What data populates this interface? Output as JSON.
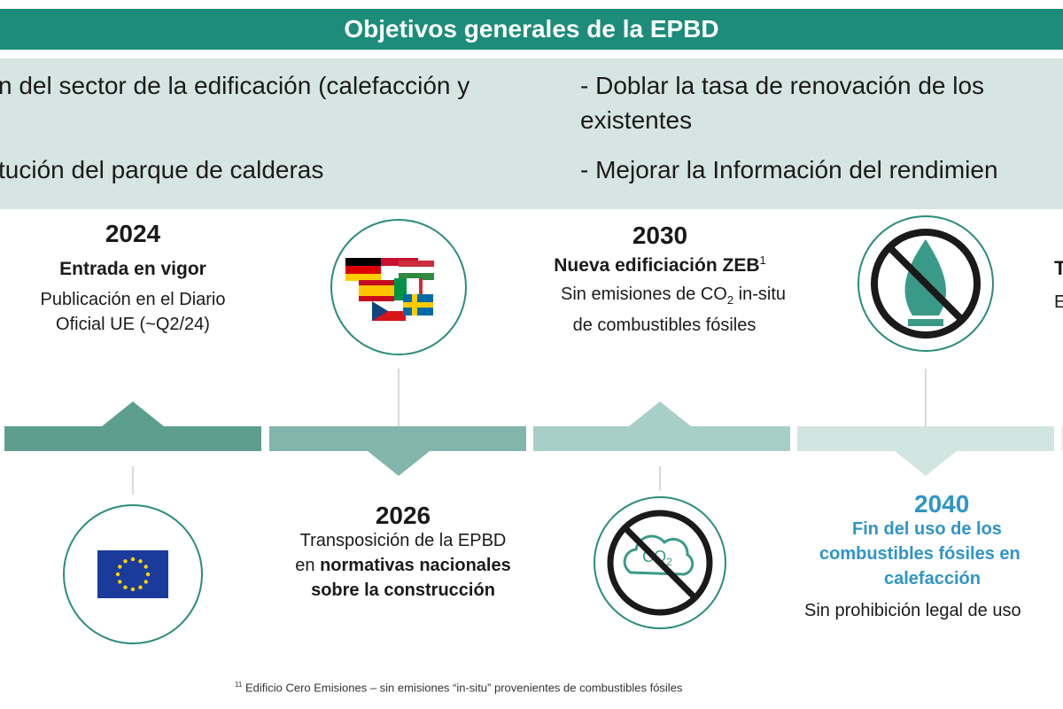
{
  "header": {
    "title": "Objetivos generales de la EPBD"
  },
  "objectives": {
    "left": [
      "n del sector de la edificación (calefacción y",
      "tución del parque de calderas"
    ],
    "right": [
      "- Doblar la tasa de renovación de los",
      "existentes",
      "- Mejorar la Información del rendimien"
    ]
  },
  "milestones": [
    {
      "year": "2024",
      "title": "Entrada en vigor",
      "lines": [
        "Publicación en el Diario",
        "Oficial UE (~Q2/24)"
      ]
    },
    {
      "year": "2026",
      "lines": [
        "Transposición de la EPBD"
      ],
      "prefix": "en",
      "bold": [
        "normativas nacionales",
        "sobre la construcción"
      ]
    },
    {
      "year": "2030",
      "title": "Nueva edificiación ZEB",
      "title_sup": "1",
      "line1": "Sin emisiones de CO",
      "line1_sub": "2",
      "line1_end": "in-situ",
      "line2": "de combustibles fósiles"
    },
    {
      "year": "2040",
      "highlight": [
        "Fin del uso de los",
        "combustibles fósiles en",
        "calefacción"
      ],
      "note": "Sin prohibición legal de uso"
    }
  ],
  "edge_text": [
    "T",
    "E"
  ],
  "icons": {
    "co2": "CO",
    "co2_sub": "2"
  },
  "footnote": {
    "mark": "11",
    "text": "Edificio Cero Emisiones – sin emisiones “in-situ” provenientes de combustibles fósiles"
  }
}
